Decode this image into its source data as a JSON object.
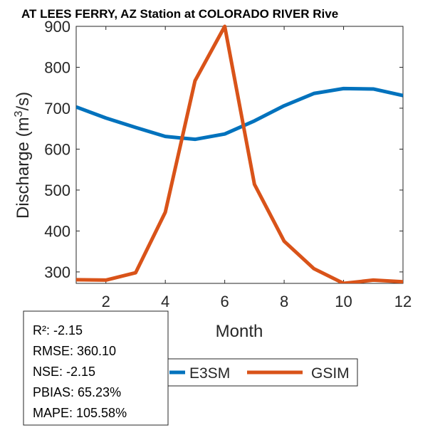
{
  "chart_data": {
    "type": "line",
    "title": "AT LEES FERRY, AZ  Station at  COLORADO RIVER  Rive",
    "xlabel": "Month",
    "ylabel": "Discharge (m",
    "ylabel_sup": "3",
    "ylabel_end": "/s)",
    "xlim": [
      1,
      12
    ],
    "ylim": [
      272,
      900
    ],
    "xticks": [
      2,
      4,
      6,
      8,
      10,
      12
    ],
    "yticks": [
      300,
      400,
      500,
      600,
      700,
      800,
      900
    ],
    "x": [
      1,
      2,
      3,
      4,
      5,
      6,
      7,
      8,
      9,
      10,
      11,
      12
    ],
    "series": [
      {
        "name": "E3SM",
        "color": "#0072BD",
        "values": [
          703,
          676,
          653,
          631,
          624,
          637,
          669,
          706,
          736,
          748,
          747,
          731
        ]
      },
      {
        "name": "GSIM",
        "color": "#D95319",
        "values": [
          281,
          280,
          298,
          446,
          767,
          900,
          514,
          375,
          308,
          272,
          280,
          276
        ]
      }
    ],
    "legend": "bottom-center",
    "stats": [
      "R²: -2.15",
      "RMSE: 360.10",
      "NSE: -2.15",
      "PBIAS: 65.23%",
      "MAPE: 105.58%"
    ]
  }
}
